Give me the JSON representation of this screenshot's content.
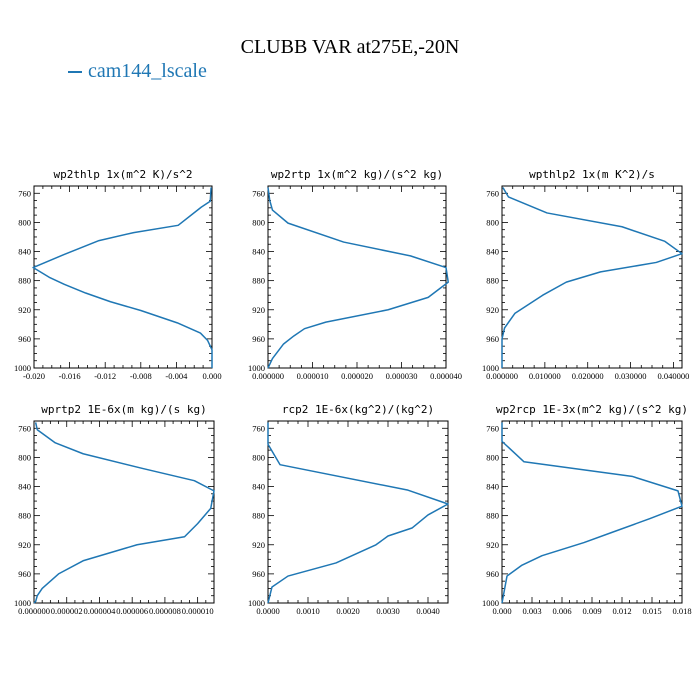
{
  "title": "CLUBB VAR at275E,-20N",
  "legend": {
    "label": "cam144_lscale",
    "color": "#1f77b4"
  },
  "chart_data": [
    {
      "type": "line",
      "title": "wp2thlp  1x(m^2 K)/s^2",
      "xlim": [
        -0.02,
        0.0
      ],
      "ylim": [
        1000,
        750
      ],
      "xticks": [
        "-0.020",
        "-0.016",
        "-0.012",
        "-0.008",
        "-0.004",
        "0.000"
      ],
      "yticks": [
        "760",
        "800",
        "840",
        "880",
        "920",
        "960",
        "1000"
      ],
      "series": [
        {
          "name": "cam144_lscale",
          "x": [
            -0.0001,
            -0.0002,
            -0.0012,
            -0.0038,
            -0.0088,
            -0.0127,
            -0.0166,
            -0.0201,
            -0.0182,
            -0.0166,
            -0.0142,
            -0.0114,
            -0.008,
            -0.0039,
            -0.0013,
            -0.0005,
            0.0,
            0.0
          ],
          "y": [
            752,
            771,
            779,
            804,
            814,
            825,
            844,
            862,
            876,
            885,
            897,
            909,
            921,
            938,
            952,
            962,
            975,
            1000
          ]
        }
      ]
    },
    {
      "type": "line",
      "title": "wp2rtp  1x(m^2 kg)/(s^2 kg)",
      "xlim": [
        0.0,
        4e-05
      ],
      "ylim": [
        1000,
        750
      ],
      "xticks": [
        "0.000000",
        "0.000010",
        "0.000020",
        "0.000030",
        "0.000040"
      ],
      "yticks": [
        "760",
        "800",
        "840",
        "880",
        "920",
        "960",
        "1000"
      ],
      "series": [
        {
          "name": "cam144_lscale",
          "x": [
            0.0,
            4e-07,
            1e-06,
            4.5e-06,
            1.7e-05,
            3.2e-05,
            4e-05,
            4.05e-05,
            3.6e-05,
            2.7e-05,
            1.3e-05,
            8.2e-06,
            5.8e-06,
            3.5e-06,
            1e-06,
            0.0
          ],
          "y": [
            752,
            770,
            783,
            801,
            827,
            846,
            862,
            882,
            903,
            920,
            937,
            946,
            956,
            967,
            987,
            1000
          ]
        }
      ]
    },
    {
      "type": "line",
      "title": "wpthlp2  1x(m K^2)/s",
      "xlim": [
        0.0,
        0.042
      ],
      "ylim": [
        1000,
        750
      ],
      "xticks": [
        "0.000000",
        "0.010000",
        "0.020000",
        "0.030000",
        "0.040000"
      ],
      "yticks": [
        "760",
        "800",
        "840",
        "880",
        "920",
        "960",
        "1000"
      ],
      "series": [
        {
          "name": "cam144_lscale",
          "x": [
            0.0002,
            0.0015,
            0.0105,
            0.028,
            0.038,
            0.042,
            0.036,
            0.023,
            0.015,
            0.0095,
            0.003,
            0.0006,
            0.0,
            0.0
          ],
          "y": [
            752,
            765,
            787,
            806,
            826,
            843,
            855,
            868,
            882,
            900,
            925,
            945,
            960,
            1000
          ]
        }
      ]
    },
    {
      "type": "line",
      "title": "wprtp2  1E-6x(m kg)/(s kg)",
      "xlim": [
        0.0,
        1.1e-05
      ],
      "ylim": [
        1000,
        750
      ],
      "xticks": [
        "0.000000",
        "0.000002",
        "0.000004",
        "0.000006",
        "0.000008",
        "0.000010"
      ],
      "yticks": [
        "760",
        "800",
        "840",
        "880",
        "920",
        "960",
        "1000"
      ],
      "series": [
        {
          "name": "cam144_lscale",
          "x": [
            1e-07,
            2e-07,
            1.3e-06,
            3e-06,
            6.6e-06,
            9.8e-06,
            1.1e-05,
            1.08e-05,
            1e-05,
            9.2e-06,
            6.3e-06,
            3e-06,
            1.5e-06,
            5e-07,
            2e-07,
            1e-07,
            0.0
          ],
          "y": [
            752,
            762,
            780,
            795,
            815,
            832,
            846,
            870,
            891,
            909,
            920,
            942,
            960,
            980,
            990,
            998,
            1000
          ]
        }
      ]
    },
    {
      "type": "line",
      "title": "rcp2  1E-6x(kg^2)/(kg^2)",
      "xlim": [
        0.0,
        0.0045
      ],
      "ylim": [
        1000,
        750
      ],
      "xticks": [
        "0.0000",
        "0.0010",
        "0.0020",
        "0.0030",
        "0.0040"
      ],
      "yticks": [
        "760",
        "800",
        "840",
        "880",
        "920",
        "960",
        "1000"
      ],
      "series": [
        {
          "name": "cam144_lscale",
          "x": [
            0.0,
            0.0,
            0.0003,
            0.0035,
            0.0045,
            0.004,
            0.0036,
            0.003,
            0.0027,
            0.0017,
            0.0005,
            0.0001,
            0.0
          ],
          "y": [
            752,
            782,
            810,
            845,
            864,
            879,
            897,
            908,
            920,
            945,
            963,
            978,
            1000
          ]
        }
      ]
    },
    {
      "type": "line",
      "title": "wp2rcp  1E-3x(m^2 kg)/(s^2 kg)",
      "xlim": [
        0.0,
        0.018
      ],
      "ylim": [
        1000,
        750
      ],
      "xticks": [
        "0.000",
        "0.003",
        "0.006",
        "0.009",
        "0.012",
        "0.015",
        "0.018"
      ],
      "yticks": [
        "760",
        "800",
        "840",
        "880",
        "920",
        "960",
        "1000"
      ],
      "series": [
        {
          "name": "cam144_lscale",
          "x": [
            0.0,
            0.0,
            0.0022,
            0.013,
            0.0176,
            0.018,
            0.0148,
            0.011,
            0.0082,
            0.004,
            0.002,
            0.0005,
            0.0
          ],
          "y": [
            752,
            778,
            806,
            826,
            846,
            867,
            884,
            903,
            917,
            935,
            948,
            963,
            1000
          ]
        }
      ]
    }
  ]
}
